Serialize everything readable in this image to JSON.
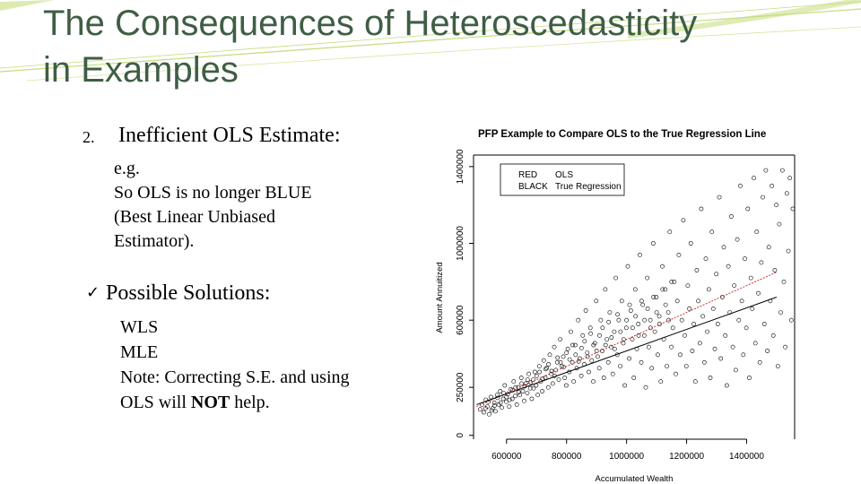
{
  "slide": {
    "title_lines": [
      "The Consequences of Heteroscedasticity",
      "in Examples"
    ],
    "item_number": "2.",
    "item_heading": "Inefficient OLS Estimate:",
    "item_body": [
      "e.g.",
      "So OLS is no longer BLUE",
      "(Best Linear Unbiased",
      "Estimator)."
    ],
    "check_mark": "✓",
    "solutions_heading": "Possible Solutions:",
    "solutions_pre": [
      "WLS",
      "MLE",
      "Note: Correcting S.E. and using"
    ],
    "solutions_last_prefix": "OLS will ",
    "solutions_last_bold": "NOT",
    "solutions_last_suffix": " help.",
    "accent_color": "#3f5e45",
    "deco_color": "#c5dc7c"
  },
  "chart_data": {
    "type": "scatter",
    "title": "PFP Example to Compare OLS to the True Regression Line",
    "xlabel": "Accumulated Wealth",
    "ylabel": "Amount Annuitized",
    "x_ticks": [
      600000,
      800000,
      1000000,
      1200000,
      1400000
    ],
    "x_tick_labels": [
      "600000",
      "800000",
      "1000000",
      "1200000",
      "1400000"
    ],
    "y_ticks": [
      0,
      250000,
      600000,
      1000000,
      1400000
    ],
    "y_tick_labels": [
      "0",
      "250000",
      "600000",
      "1000000",
      "1400000"
    ],
    "xlim": [
      490000,
      1560000
    ],
    "ylim": [
      -20000,
      1460000
    ],
    "legend": {
      "placement": "top-left",
      "entries": [
        {
          "key": "RED",
          "label": "OLS",
          "color": "#cc3333"
        },
        {
          "key": "BLACK",
          "label": "True Regression",
          "color": "#000000"
        }
      ]
    },
    "series": [
      {
        "name": "OLS",
        "color": "#cc3333",
        "x": [
          500000,
          1500000
        ],
        "y": [
          150000,
          850000
        ]
      },
      {
        "name": "True Regression",
        "color": "#000000",
        "x": [
          500000,
          1500000
        ],
        "y": [
          160000,
          720000
        ]
      }
    ],
    "points": [
      [
        512000,
        135000
      ],
      [
        518000,
        160000
      ],
      [
        524000,
        120000
      ],
      [
        531000,
        185000
      ],
      [
        536000,
        150000
      ],
      [
        542000,
        110000
      ],
      [
        548000,
        200000
      ],
      [
        553000,
        140000
      ],
      [
        559000,
        170000
      ],
      [
        563000,
        125000
      ],
      [
        569000,
        210000
      ],
      [
        574000,
        160000
      ],
      [
        579000,
        230000
      ],
      [
        584000,
        145000
      ],
      [
        589000,
        190000
      ],
      [
        594000,
        260000
      ],
      [
        599000,
        175000
      ],
      [
        604000,
        215000
      ],
      [
        609000,
        150000
      ],
      [
        614000,
        240000
      ],
      [
        619000,
        190000
      ],
      [
        624000,
        280000
      ],
      [
        629000,
        205000
      ],
      [
        634000,
        160000
      ],
      [
        639000,
        250000
      ],
      [
        644000,
        210000
      ],
      [
        649000,
        300000
      ],
      [
        654000,
        230000
      ],
      [
        659000,
        180000
      ],
      [
        664000,
        270000
      ],
      [
        669000,
        220000
      ],
      [
        674000,
        320000
      ],
      [
        679000,
        245000
      ],
      [
        684000,
        190000
      ],
      [
        689000,
        290000
      ],
      [
        694000,
        330000
      ],
      [
        699000,
        260000
      ],
      [
        704000,
        210000
      ],
      [
        709000,
        360000
      ],
      [
        714000,
        280000
      ],
      [
        719000,
        230000
      ],
      [
        724000,
        390000
      ],
      [
        729000,
        300000
      ],
      [
        734000,
        350000
      ],
      [
        739000,
        250000
      ],
      [
        744000,
        420000
      ],
      [
        749000,
        320000
      ],
      [
        754000,
        270000
      ],
      [
        759000,
        460000
      ],
      [
        764000,
        340000
      ],
      [
        769000,
        380000
      ],
      [
        774000,
        290000
      ],
      [
        779000,
        500000
      ],
      [
        784000,
        360000
      ],
      [
        789000,
        410000
      ],
      [
        794000,
        300000
      ],
      [
        799000,
        260000
      ],
      [
        804000,
        450000
      ],
      [
        809000,
        330000
      ],
      [
        814000,
        540000
      ],
      [
        819000,
        380000
      ],
      [
        824000,
        280000
      ],
      [
        829000,
        470000
      ],
      [
        834000,
        350000
      ],
      [
        839000,
        600000
      ],
      [
        844000,
        400000
      ],
      [
        849000,
        310000
      ],
      [
        854000,
        520000
      ],
      [
        859000,
        370000
      ],
      [
        864000,
        650000
      ],
      [
        869000,
        430000
      ],
      [
        874000,
        330000
      ],
      [
        879000,
        560000
      ],
      [
        884000,
        390000
      ],
      [
        889000,
        280000
      ],
      [
        894000,
        480000
      ],
      [
        899000,
        700000
      ],
      [
        904000,
        410000
      ],
      [
        909000,
        350000
      ],
      [
        914000,
        600000
      ],
      [
        919000,
        440000
      ],
      [
        924000,
        300000
      ],
      [
        929000,
        760000
      ],
      [
        934000,
        500000
      ],
      [
        939000,
        380000
      ],
      [
        944000,
        640000
      ],
      [
        949000,
        460000
      ],
      [
        954000,
        320000
      ],
      [
        959000,
        540000
      ],
      [
        964000,
        820000
      ],
      [
        969000,
        420000
      ],
      [
        974000,
        600000
      ],
      [
        979000,
        360000
      ],
      [
        984000,
        700000
      ],
      [
        989000,
        480000
      ],
      [
        994000,
        260000
      ],
      [
        999000,
        560000
      ],
      [
        1004000,
        880000
      ],
      [
        1009000,
        400000
      ],
      [
        1014000,
        650000
      ],
      [
        1019000,
        500000
      ],
      [
        1024000,
        300000
      ],
      [
        1029000,
        760000
      ],
      [
        1034000,
        450000
      ],
      [
        1039000,
        580000
      ],
      [
        1044000,
        940000
      ],
      [
        1049000,
        380000
      ],
      [
        1054000,
        680000
      ],
      [
        1059000,
        520000
      ],
      [
        1064000,
        250000
      ],
      [
        1069000,
        820000
      ],
      [
        1074000,
        460000
      ],
      [
        1079000,
        600000
      ],
      [
        1084000,
        350000
      ],
      [
        1089000,
        1000000
      ],
      [
        1094000,
        540000
      ],
      [
        1099000,
        720000
      ],
      [
        1104000,
        420000
      ],
      [
        1109000,
        620000
      ],
      [
        1114000,
        280000
      ],
      [
        1119000,
        880000
      ],
      [
        1124000,
        500000
      ],
      [
        1129000,
        760000
      ],
      [
        1134000,
        360000
      ],
      [
        1139000,
        640000
      ],
      [
        1144000,
        1060000
      ],
      [
        1149000,
        460000
      ],
      [
        1154000,
        560000
      ],
      [
        1159000,
        800000
      ],
      [
        1164000,
        320000
      ],
      [
        1169000,
        700000
      ],
      [
        1174000,
        940000
      ],
      [
        1179000,
        420000
      ],
      [
        1184000,
        600000
      ],
      [
        1189000,
        1120000
      ],
      [
        1194000,
        520000
      ],
      [
        1199000,
        360000
      ],
      [
        1204000,
        780000
      ],
      [
        1209000,
        660000
      ],
      [
        1214000,
        1000000
      ],
      [
        1219000,
        440000
      ],
      [
        1224000,
        580000
      ],
      [
        1229000,
        280000
      ],
      [
        1234000,
        860000
      ],
      [
        1239000,
        700000
      ],
      [
        1244000,
        480000
      ],
      [
        1249000,
        1180000
      ],
      [
        1254000,
        620000
      ],
      [
        1259000,
        380000
      ],
      [
        1264000,
        920000
      ],
      [
        1269000,
        540000
      ],
      [
        1274000,
        760000
      ],
      [
        1279000,
        300000
      ],
      [
        1284000,
        1060000
      ],
      [
        1289000,
        660000
      ],
      [
        1294000,
        450000
      ],
      [
        1299000,
        840000
      ],
      [
        1304000,
        580000
      ],
      [
        1309000,
        1240000
      ],
      [
        1314000,
        400000
      ],
      [
        1319000,
        720000
      ],
      [
        1324000,
        980000
      ],
      [
        1329000,
        520000
      ],
      [
        1334000,
        260000
      ],
      [
        1339000,
        880000
      ],
      [
        1344000,
        640000
      ],
      [
        1349000,
        1140000
      ],
      [
        1354000,
        460000
      ],
      [
        1359000,
        780000
      ],
      [
        1364000,
        340000
      ],
      [
        1369000,
        1020000
      ],
      [
        1374000,
        600000
      ],
      [
        1379000,
        1300000
      ],
      [
        1384000,
        700000
      ],
      [
        1389000,
        420000
      ],
      [
        1394000,
        920000
      ],
      [
        1399000,
        560000
      ],
      [
        1404000,
        1180000
      ],
      [
        1409000,
        300000
      ],
      [
        1414000,
        820000
      ],
      [
        1419000,
        660000
      ],
      [
        1424000,
        1340000
      ],
      [
        1429000,
        480000
      ],
      [
        1434000,
        1060000
      ],
      [
        1439000,
        740000
      ],
      [
        1444000,
        380000
      ],
      [
        1449000,
        900000
      ],
      [
        1454000,
        1240000
      ],
      [
        1459000,
        580000
      ],
      [
        1464000,
        1380000
      ],
      [
        1469000,
        440000
      ],
      [
        1474000,
        980000
      ],
      [
        1479000,
        700000
      ],
      [
        1484000,
        1300000
      ],
      [
        1489000,
        520000
      ],
      [
        1494000,
        860000
      ],
      [
        1499000,
        1200000
      ],
      [
        1504000,
        360000
      ],
      [
        1509000,
        1100000
      ],
      [
        1514000,
        640000
      ],
      [
        1519000,
        1380000
      ],
      [
        1524000,
        800000
      ],
      [
        1529000,
        460000
      ],
      [
        1534000,
        1260000
      ],
      [
        1539000,
        960000
      ],
      [
        1544000,
        1340000
      ],
      [
        1549000,
        600000
      ],
      [
        1554000,
        1180000
      ],
      [
        530000,
        140000
      ],
      [
        540000,
        175000
      ],
      [
        550000,
        130000
      ],
      [
        560000,
        155000
      ],
      [
        570000,
        195000
      ],
      [
        580000,
        170000
      ],
      [
        590000,
        220000
      ],
      [
        600000,
        200000
      ],
      [
        610000,
        185000
      ],
      [
        620000,
        235000
      ],
      [
        630000,
        250000
      ],
      [
        640000,
        225000
      ],
      [
        650000,
        270000
      ],
      [
        660000,
        255000
      ],
      [
        670000,
        290000
      ],
      [
        680000,
        275000
      ],
      [
        690000,
        245000
      ],
      [
        700000,
        310000
      ],
      [
        710000,
        330000
      ],
      [
        720000,
        295000
      ],
      [
        730000,
        345000
      ],
      [
        740000,
        370000
      ],
      [
        750000,
        335000
      ],
      [
        760000,
        310000
      ],
      [
        770000,
        405000
      ],
      [
        780000,
        380000
      ],
      [
        790000,
        355000
      ],
      [
        800000,
        430000
      ],
      [
        810000,
        395000
      ],
      [
        820000,
        470000
      ],
      [
        830000,
        420000
      ],
      [
        840000,
        385000
      ],
      [
        850000,
        455000
      ],
      [
        860000,
        490000
      ],
      [
        870000,
        410000
      ],
      [
        880000,
        530000
      ],
      [
        890000,
        470000
      ],
      [
        900000,
        440000
      ],
      [
        910000,
        520000
      ],
      [
        920000,
        560000
      ],
      [
        930000,
        470000
      ],
      [
        940000,
        590000
      ],
      [
        950000,
        510000
      ],
      [
        960000,
        450000
      ],
      [
        970000,
        630000
      ],
      [
        980000,
        540000
      ],
      [
        990000,
        500000
      ],
      [
        1000000,
        600000
      ],
      [
        1010000,
        680000
      ],
      [
        1020000,
        560000
      ],
      [
        1030000,
        620000
      ],
      [
        1040000,
        520000
      ],
      [
        1050000,
        700000
      ],
      [
        1060000,
        600000
      ],
      [
        1070000,
        660000
      ],
      [
        1080000,
        560000
      ],
      [
        1090000,
        720000
      ],
      [
        1100000,
        640000
      ],
      [
        1110000,
        580000
      ],
      [
        1120000,
        760000
      ],
      [
        1130000,
        680000
      ],
      [
        1140000,
        600000
      ],
      [
        1150000,
        800000
      ]
    ]
  }
}
